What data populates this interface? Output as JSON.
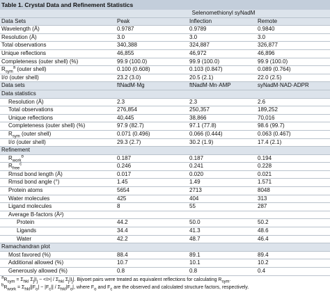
{
  "title": "Table 1.  Crystal Data and Refinement Statistics",
  "table": {
    "group_header": "Selenomethionyl syNadM",
    "header": [
      "Data Sets",
      "Peak",
      "Inflection",
      "Remote"
    ],
    "rows": [
      [
        "Wavelength (Å)",
        "0.9787",
        "0.9789",
        "0.9840"
      ],
      [
        "Resolution (Å)",
        "3.0",
        "3.0",
        "3.0"
      ],
      [
        "Total observations",
        "340,388",
        "324,887",
        "326,877"
      ],
      [
        "Unique reflections",
        "46,855",
        "46,972",
        "46,896"
      ],
      [
        "Completeness (outer shell) (%)",
        "99.9 (100.0)",
        "99.9 (100.0)",
        "99.9 (100.0)"
      ],
      [
        [
          "R",
          {
            "sub": "sym"
          },
          {
            "sup": "a"
          },
          " (outer shell)"
        ],
        "0.100 (0.608)",
        "0.103 (0.847)",
        "0.089 (0.764)"
      ],
      [
        "I/σ (outer shell)",
        "23.2 (3.0)",
        "20.5 (2.1)",
        "22.0 (2.5)"
      ]
    ],
    "header2": [
      "Data sets",
      "ftNadM·Mg",
      "ftNadM·Mn·AMP",
      "syNadM·NAD·ADPR"
    ],
    "sections": [
      {
        "title": "Data statistics",
        "rows": [
          [
            "Resolution (Å)",
            "2.3",
            "2.3",
            "2.6"
          ],
          [
            "Total observations",
            "276,854",
            "250,357",
            "189,252"
          ],
          [
            "Unique reflections",
            "40,445",
            "38,866",
            "70,016"
          ],
          [
            "Completeness (outer shell) (%)",
            "97.9 (82.7)",
            "97.1 (77.8)",
            "98.6 (99.7)"
          ],
          [
            [
              "R",
              {
                "sub": "sym"
              },
              " (outer shell)"
            ],
            "0.071 (0.496)",
            "0.066 (0.444)",
            "0.063 (0.467)"
          ],
          [
            "I/σ (outer shell)",
            "29.3 (2.7)",
            "30.2 (1.9)",
            "17.4 (2.1)"
          ]
        ]
      },
      {
        "title": "Refinement",
        "rows": [
          [
            [
              "R",
              {
                "sub": "work"
              },
              {
                "sup": "b"
              }
            ],
            "0.187",
            "0.187",
            "0.194"
          ],
          [
            [
              "R",
              {
                "sub": "free"
              },
              {
                "sup": "c"
              }
            ],
            "0.246",
            "0.241",
            "0.228"
          ],
          [
            "Rmsd bond length (Å)",
            "0.017",
            "0.020",
            "0.021"
          ],
          [
            "Rmsd bond angle (°)",
            "1.45",
            "1.49",
            "1.571"
          ],
          [
            "Protein atoms",
            "5654",
            "2713",
            "8048"
          ],
          [
            "Water molecules",
            "425",
            "404",
            "313"
          ],
          [
            "Ligand molecules",
            "8",
            "55",
            "287"
          ]
        ],
        "subgroup": {
          "title": "Average B-factors (Å²)",
          "rows": [
            [
              "Protein",
              "44.2",
              "50.0",
              "50.2"
            ],
            [
              "Ligands",
              "34.4",
              "41.3",
              "48.6"
            ],
            [
              "Water",
              "42.2",
              "48.7",
              "46.4"
            ]
          ]
        }
      },
      {
        "title": "Ramachandran plot",
        "rows": [
          [
            "Most favored (%)",
            "88.4",
            "89.1",
            "89.4"
          ],
          [
            "Additional allowed (%)",
            "10.7",
            "10.1",
            "10.2"
          ],
          [
            "Generously allowed (%)",
            "0.8",
            "0.8",
            "0.4"
          ]
        ]
      }
    ]
  },
  "footnotes": [
    [
      {
        "sup": "a"
      },
      "R",
      {
        "sub": "sym"
      },
      " = Σ",
      {
        "sub": "hkl"
      },
      " Σ",
      {
        "sub": "j"
      },
      "|I",
      {
        "sub": "j"
      },
      " − <I>| / Σ",
      {
        "sub": "hkl"
      },
      " Σ",
      {
        "sub": "j"
      },
      "|I",
      {
        "sub": "j"
      },
      "|. Bijvoet pairs were treated as equivalent reflections for calculating R",
      {
        "sub": "sym"
      },
      "."
    ],
    [
      {
        "sup": "b"
      },
      "R",
      {
        "sub": "work"
      },
      " = Σ",
      {
        "sub": "hkl"
      },
      "||F",
      {
        "sub": "o"
      },
      "| − |F",
      {
        "sub": "c"
      },
      "|| / Σ",
      {
        "sub": "hkl"
      },
      "|F",
      {
        "sub": "o"
      },
      "|, where F",
      {
        "sub": "o"
      },
      " and F",
      {
        "sub": "c"
      },
      " are the observed and calculated structure factors, respectively."
    ]
  ]
}
